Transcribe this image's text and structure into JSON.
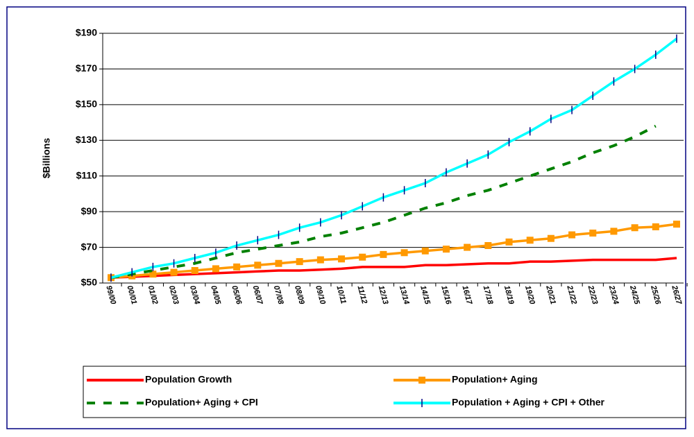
{
  "chart_data": {
    "type": "line",
    "y_label": "$Billions",
    "categories": [
      "99/00",
      "00/01",
      "01/02",
      "02/03",
      "03/04",
      "04/05",
      "05/06",
      "06/07",
      "07/08",
      "08/09",
      "09/10",
      "10/11",
      "11/12",
      "12/13",
      "13/14",
      "14/15",
      "15/16",
      "16/17",
      "17/18",
      "18/19",
      "19/20",
      "20/21",
      "21/22",
      "22/23",
      "23/24",
      "24/25",
      "25/26",
      "26/27"
    ],
    "ylim": [
      50,
      190
    ],
    "yticks": [
      {
        "value": 50,
        "label": "$50"
      },
      {
        "value": 70,
        "label": "$70"
      },
      {
        "value": 90,
        "label": "$90"
      },
      {
        "value": 110,
        "label": "$110"
      },
      {
        "value": 130,
        "label": "$130"
      },
      {
        "value": 150,
        "label": "$150"
      },
      {
        "value": 170,
        "label": "$170"
      },
      {
        "value": 190,
        "label": "$190"
      }
    ],
    "grid": true,
    "legend": "bottom",
    "series": [
      {
        "name": "Population Growth",
        "color": "#ff0000",
        "marker": "none",
        "dash": false,
        "values": [
          53,
          53.5,
          54,
          54.5,
          55,
          55.5,
          56,
          56.5,
          57,
          57,
          57.5,
          58,
          59,
          59,
          59,
          60,
          60,
          60.5,
          61,
          61,
          62,
          62,
          62.5,
          63,
          63,
          63,
          63,
          64
        ]
      },
      {
        "name": "Population+ Aging",
        "color": "#ff9900",
        "marker": "square",
        "dash": false,
        "values": [
          53,
          54,
          55,
          56,
          57,
          58,
          59,
          60,
          61,
          62,
          63,
          63.5,
          64.5,
          66,
          67,
          68,
          69,
          70,
          71,
          73,
          74,
          75,
          77,
          78,
          79,
          81,
          81.5,
          83
        ]
      },
      {
        "name": "Population+ Aging + CPI",
        "color": "#008000",
        "marker": "none",
        "dash": true,
        "values": [
          53,
          55,
          57,
          59,
          61,
          64,
          67,
          69,
          71,
          73,
          76,
          78,
          81,
          84,
          88,
          92,
          95,
          99,
          102,
          106,
          110,
          114,
          118,
          123,
          127,
          132,
          138,
          null
        ]
      },
      {
        "name": "Population + Aging + CPI + Other",
        "color": "#00ffff",
        "marker": "tick",
        "dash": false,
        "values": [
          53,
          56,
          59,
          61,
          64,
          67,
          71,
          74,
          77,
          81,
          84,
          88,
          93,
          98,
          102,
          106,
          112,
          117,
          122,
          129,
          135,
          142,
          147,
          155,
          163,
          170,
          178,
          187
        ]
      }
    ]
  }
}
